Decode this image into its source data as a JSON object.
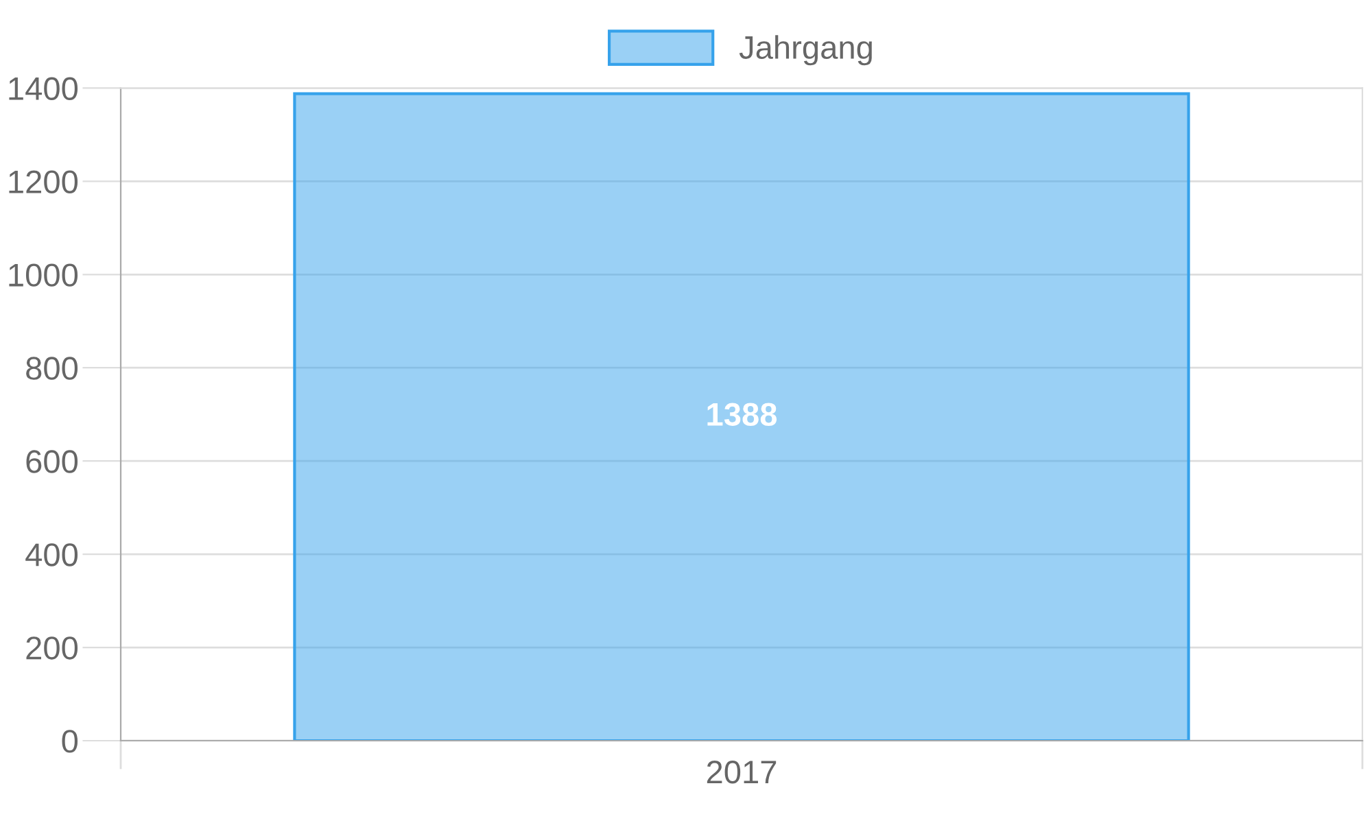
{
  "chart_data": {
    "type": "bar",
    "categories": [
      "2017"
    ],
    "series": [
      {
        "name": "Jahrgang",
        "color": "#36a2eb",
        "values": [
          1388
        ]
      }
    ],
    "ylim": [
      0,
      1400
    ],
    "yticks": [
      0,
      200,
      400,
      600,
      800,
      1000,
      1200,
      1400
    ],
    "grid": "y",
    "legend": "top",
    "data_labels": true
  }
}
